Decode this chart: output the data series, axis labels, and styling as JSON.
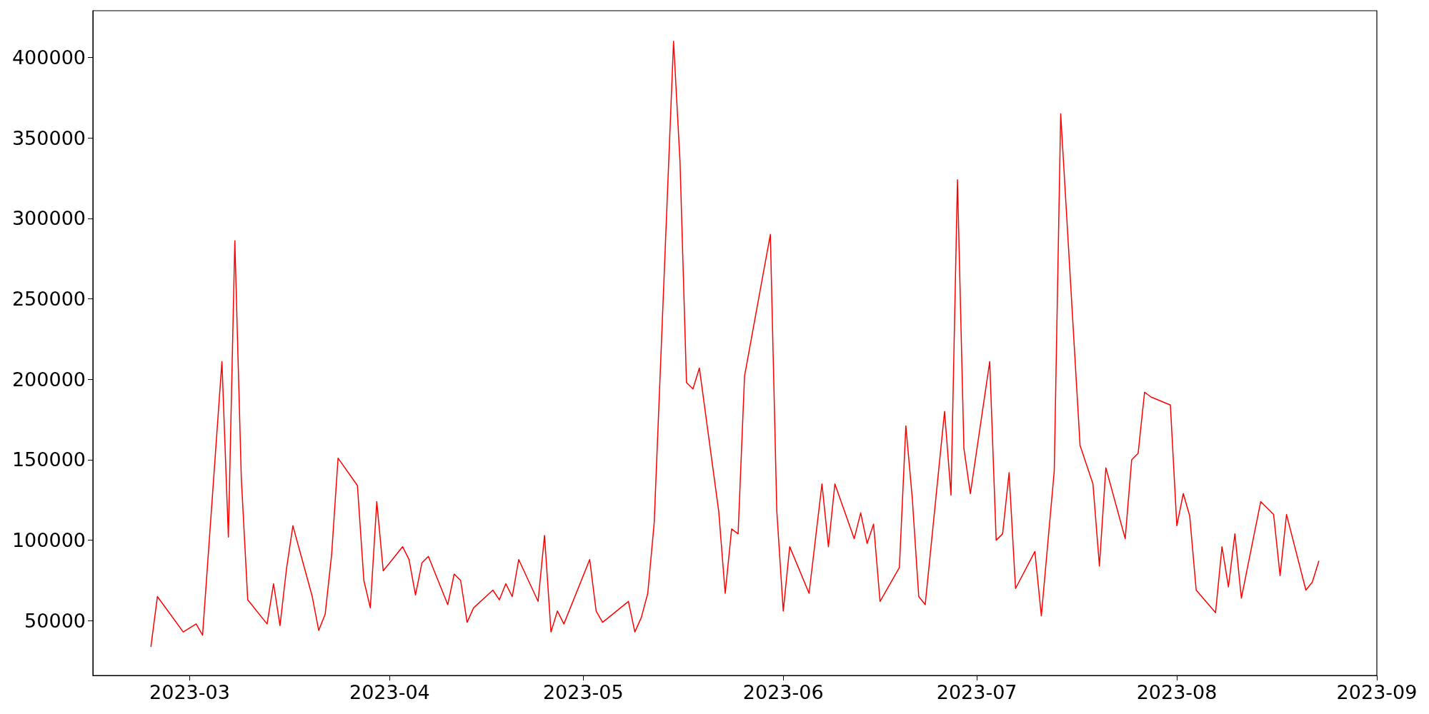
{
  "chart_data": {
    "type": "line",
    "x": [
      "2023-02-23",
      "2023-02-24",
      "2023-02-28",
      "2023-03-02",
      "2023-03-03",
      "2023-03-06",
      "2023-03-07",
      "2023-03-08",
      "2023-03-09",
      "2023-03-10",
      "2023-03-13",
      "2023-03-14",
      "2023-03-15",
      "2023-03-16",
      "2023-03-17",
      "2023-03-20",
      "2023-03-21",
      "2023-03-22",
      "2023-03-23",
      "2023-03-24",
      "2023-03-27",
      "2023-03-28",
      "2023-03-29",
      "2023-03-30",
      "2023-03-31",
      "2023-04-03",
      "2023-04-04",
      "2023-04-05",
      "2023-04-06",
      "2023-04-07",
      "2023-04-10",
      "2023-04-11",
      "2023-04-12",
      "2023-04-13",
      "2023-04-14",
      "2023-04-17",
      "2023-04-18",
      "2023-04-19",
      "2023-04-20",
      "2023-04-21",
      "2023-04-24",
      "2023-04-25",
      "2023-04-26",
      "2023-04-27",
      "2023-04-28",
      "2023-05-02",
      "2023-05-03",
      "2023-05-04",
      "2023-05-08",
      "2023-05-09",
      "2023-05-10",
      "2023-05-11",
      "2023-05-12",
      "2023-05-15",
      "2023-05-16",
      "2023-05-17",
      "2023-05-18",
      "2023-05-19",
      "2023-05-22",
      "2023-05-23",
      "2023-05-24",
      "2023-05-25",
      "2023-05-26",
      "2023-05-30",
      "2023-05-31",
      "2023-06-01",
      "2023-06-02",
      "2023-06-05",
      "2023-06-07",
      "2023-06-08",
      "2023-06-09",
      "2023-06-12",
      "2023-06-13",
      "2023-06-14",
      "2023-06-15",
      "2023-06-16",
      "2023-06-19",
      "2023-06-20",
      "2023-06-21",
      "2023-06-22",
      "2023-06-23",
      "2023-06-26",
      "2023-06-27",
      "2023-06-28",
      "2023-06-29",
      "2023-06-30",
      "2023-07-03",
      "2023-07-04",
      "2023-07-05",
      "2023-07-06",
      "2023-07-07",
      "2023-07-10",
      "2023-07-11",
      "2023-07-13",
      "2023-07-14",
      "2023-07-17",
      "2023-07-18",
      "2023-07-19",
      "2023-07-20",
      "2023-07-21",
      "2023-07-24",
      "2023-07-25",
      "2023-07-26",
      "2023-07-27",
      "2023-07-28",
      "2023-07-31",
      "2023-08-01",
      "2023-08-02",
      "2023-08-03",
      "2023-08-04",
      "2023-08-07",
      "2023-08-08",
      "2023-08-09",
      "2023-08-10",
      "2023-08-11",
      "2023-08-14",
      "2023-08-15",
      "2023-08-16",
      "2023-08-17",
      "2023-08-18",
      "2023-08-21",
      "2023-08-22",
      "2023-08-23"
    ],
    "series": [
      {
        "color": "#ff0000",
        "values": [
          34000,
          65000,
          43000,
          48000,
          41000,
          211000,
          102000,
          286000,
          139000,
          63000,
          48000,
          73000,
          47000,
          82000,
          109000,
          65000,
          44000,
          54000,
          91000,
          151000,
          134000,
          75000,
          58000,
          124000,
          81000,
          96000,
          88000,
          66000,
          86000,
          90000,
          60000,
          79000,
          75000,
          49000,
          58000,
          69000,
          63000,
          73000,
          65000,
          88000,
          62000,
          103000,
          43000,
          56000,
          48000,
          88000,
          56000,
          49000,
          62000,
          43000,
          52000,
          67000,
          111000,
          410000,
          335000,
          198000,
          194000,
          207000,
          118000,
          67000,
          107000,
          104000,
          202000,
          290000,
          118000,
          56000,
          96000,
          67000,
          135000,
          96000,
          135000,
          101000,
          117000,
          98000,
          110000,
          62000,
          83000,
          171000,
          126000,
          65000,
          60000,
          180000,
          128000,
          324000,
          157000,
          129000,
          211000,
          100000,
          104000,
          142000,
          70000,
          93000,
          53000,
          143000,
          365000,
          159000,
          147000,
          135000,
          84000,
          145000,
          101000,
          150000,
          154000,
          192000,
          189000,
          184000,
          109000,
          129000,
          115000,
          69000,
          55000,
          96000,
          71000,
          104000,
          64000,
          124000,
          120000,
          116000,
          78000,
          116000,
          69000,
          74000,
          87000
        ]
      }
    ],
    "xlim": [
      "2023-02-14",
      "2023-09"
    ],
    "xticks": [
      "2023-03",
      "2023-04",
      "2023-05",
      "2023-06",
      "2023-07",
      "2023-08",
      "2023-09"
    ],
    "ylim": [
      16000,
      429000
    ],
    "yticks": [
      50000,
      100000,
      150000,
      200000,
      250000,
      300000,
      350000,
      400000
    ],
    "marker": "none",
    "line_style": "solid"
  }
}
